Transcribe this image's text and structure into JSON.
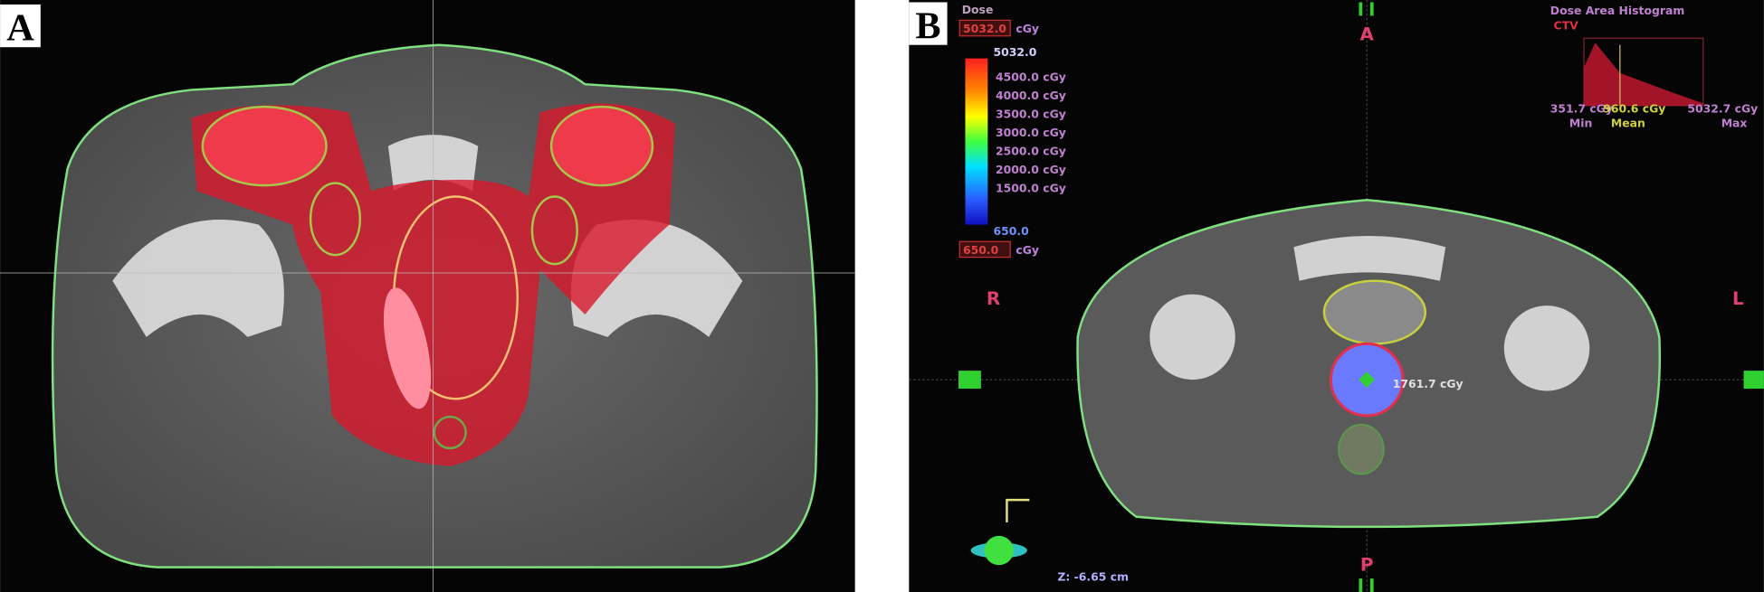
{
  "panels": [
    {
      "label": "A"
    },
    {
      "label": "B",
      "dose_title": "Dose",
      "max_dose": "5032.0",
      "unit": "cGy",
      "bar_top": "5032.0",
      "legend": [
        "4500.0 cGy",
        "4000.0 cGy",
        "3500.0 cGy",
        "3000.0 cGy",
        "2500.0 cGy",
        "2000.0 cGy",
        "1500.0 cGy"
      ],
      "bar_bottom": "650.0",
      "min_dose": "650.0",
      "histogram": {
        "title": "Dose Area Histogram",
        "structure": "CTV",
        "min": "351.7 cGy",
        "mean": "960.6 cGy",
        "max": "5032.7 cGy",
        "min_label": "Min",
        "mean_label": "Mean",
        "max_label": "Max"
      },
      "orientation": {
        "anterior": "A",
        "posterior": "P",
        "right": "R",
        "left": "L"
      },
      "point_dose": "1761.7 cGy",
      "z_position": "Z: -6.65 cm"
    }
  ]
}
